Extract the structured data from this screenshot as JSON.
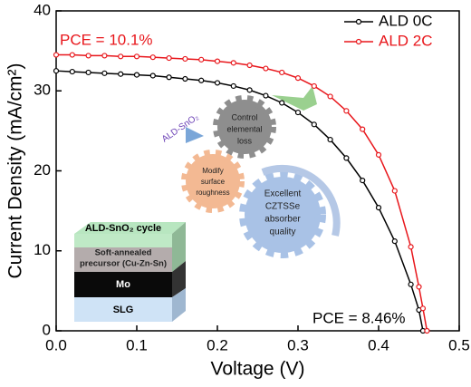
{
  "chart_data": {
    "type": "line",
    "x_label": "Voltage (V)",
    "y_label": "Current Density (mA/cm²)",
    "x": [
      0,
      0.02,
      0.04,
      0.06,
      0.08,
      0.1,
      0.12,
      0.14,
      0.16,
      0.18,
      0.2,
      0.22,
      0.24,
      0.26,
      0.28,
      0.3,
      0.32,
      0.34,
      0.36,
      0.38,
      0.4,
      0.42,
      0.44,
      0.45,
      0.455,
      0.46
    ],
    "series": [
      {
        "name": "ALD 0C",
        "color": "#000000",
        "values": [
          32.5,
          32.4,
          32.3,
          32.2,
          32.1,
          32.0,
          31.9,
          31.7,
          31.5,
          31.3,
          31.0,
          30.6,
          30.1,
          29.4,
          28.5,
          27.3,
          25.8,
          23.9,
          21.6,
          18.8,
          15.4,
          11.2,
          5.8,
          2.6,
          0,
          null
        ]
      },
      {
        "name": "ALD 2C",
        "color": "#e8161b",
        "values": [
          34.5,
          34.5,
          34.4,
          34.4,
          34.3,
          34.3,
          34.2,
          34.1,
          34.0,
          33.9,
          33.7,
          33.5,
          33.2,
          32.8,
          32.3,
          31.6,
          30.6,
          29.3,
          27.5,
          25.2,
          22.0,
          17.5,
          10.5,
          5.5,
          2.8,
          0
        ]
      }
    ],
    "xlim": [
      0,
      0.5
    ],
    "ylim": [
      0,
      40
    ],
    "xticks": [
      {
        "value": 0,
        "label": "0.0"
      },
      0.1,
      0.2,
      0.3,
      0.4,
      0.5
    ],
    "yticks": [
      0,
      10,
      20,
      30,
      40
    ],
    "legend": "upper right",
    "annotations": [
      "PCE = 10.1%",
      "PCE = 8.46%"
    ],
    "inset": {
      "layers": [
        "ALD-SnO₂ cycle",
        "Soft-annealed",
        "precursor (Cu-Zn-Sn)",
        "Mo",
        "SLG"
      ],
      "process": "ALD-SnO₂",
      "gears": [
        [
          "Control",
          "elemental",
          "loss"
        ],
        [
          "Modify",
          "surface",
          "roughness"
        ],
        [
          "Excellent",
          "CZTSSe",
          "absorber",
          "quality"
        ]
      ]
    }
  }
}
